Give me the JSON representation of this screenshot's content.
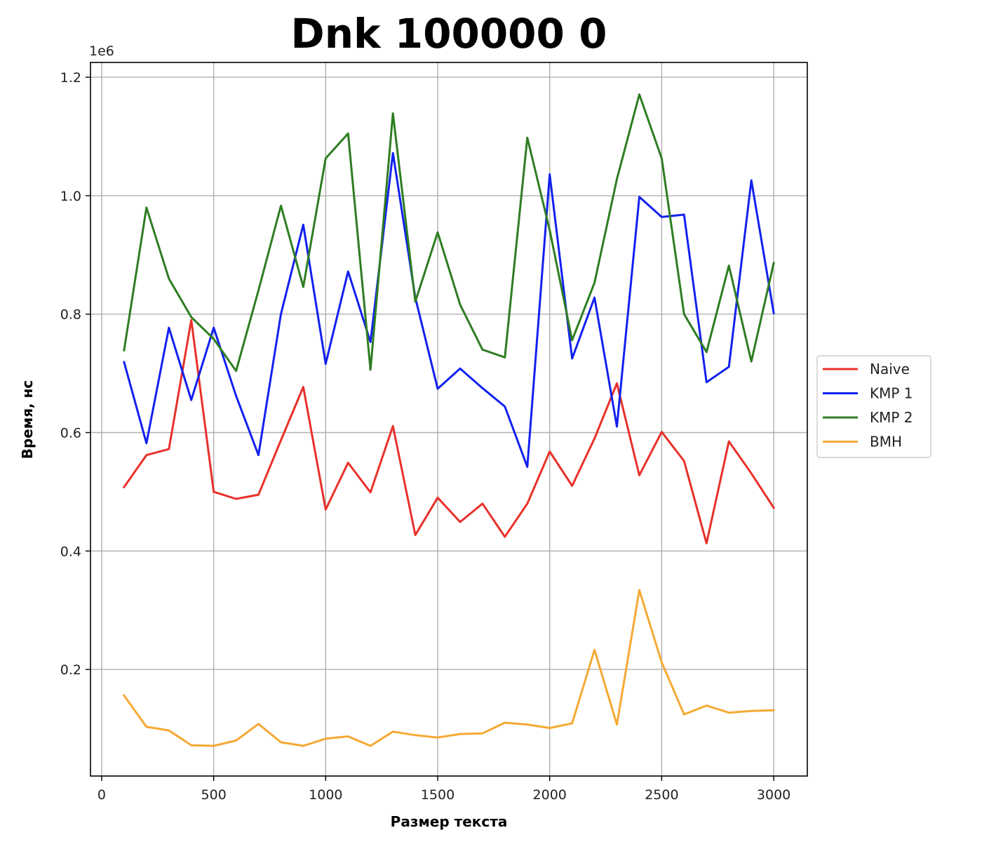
{
  "chart_data": {
    "type": "line",
    "title": "Dnk 100000 0",
    "xlabel": "Размер текста",
    "ylabel": "Время, нс",
    "y_offset_label": "1e6",
    "xlim": [
      -50,
      3150
    ],
    "ylim": [
      0.02,
      1.225
    ],
    "x_ticks": [
      0,
      500,
      1000,
      1500,
      2000,
      2500,
      3000
    ],
    "x_tick_labels": [
      "0",
      "500",
      "1000",
      "1500",
      "2000",
      "2500",
      "3000"
    ],
    "y_ticks": [
      0.2,
      0.4,
      0.6,
      0.8,
      1.0,
      1.2
    ],
    "y_tick_labels": [
      "0.2",
      "0.4",
      "0.6",
      "0.8",
      "1.0",
      "1.2"
    ],
    "grid": true,
    "legend_position": "right-outside",
    "x": [
      100,
      200,
      300,
      400,
      500,
      600,
      700,
      800,
      900,
      1000,
      1100,
      1200,
      1300,
      1400,
      1500,
      1600,
      1700,
      1800,
      1900,
      2000,
      2100,
      2200,
      2300,
      2400,
      2500,
      2600,
      2700,
      2800,
      2900,
      3000
    ],
    "series": [
      {
        "name": "Naive",
        "color": "#e8312a",
        "values": [
          0.508,
          0.562,
          0.572,
          0.79,
          0.5,
          0.488,
          0.495,
          0.587,
          0.677,
          0.47,
          0.549,
          0.499,
          0.611,
          0.427,
          0.49,
          0.449,
          0.48,
          0.424,
          0.48,
          0.568,
          0.51,
          0.59,
          0.683,
          0.528,
          0.601,
          0.552,
          0.413,
          0.585,
          0.531,
          0.473
        ]
      },
      {
        "name": "KMP 1",
        "color": "#1221f0",
        "values": [
          0.719,
          0.582,
          0.777,
          0.655,
          0.777,
          0.662,
          0.562,
          0.8,
          0.951,
          0.716,
          0.872,
          0.753,
          1.072,
          0.828,
          0.674,
          0.708,
          0.675,
          0.644,
          0.542,
          1.036,
          0.725,
          0.828,
          0.61,
          0.998,
          0.964,
          0.968,
          0.685,
          0.711,
          1.026,
          0.802
        ]
      },
      {
        "name": "KMP 2",
        "color": "#2e7d22",
        "values": [
          0.739,
          0.98,
          0.86,
          0.795,
          0.758,
          0.704,
          0.84,
          0.983,
          0.846,
          1.063,
          1.105,
          0.706,
          1.139,
          0.821,
          0.938,
          0.816,
          0.74,
          0.727,
          1.098,
          0.942,
          0.756,
          0.853,
          1.028,
          1.171,
          1.063,
          0.8,
          0.736,
          0.882,
          0.72,
          0.886
        ]
      },
      {
        "name": "BMH",
        "color": "#f5a934",
        "values": [
          0.156,
          0.103,
          0.097,
          0.072,
          0.071,
          0.08,
          0.108,
          0.077,
          0.071,
          0.083,
          0.087,
          0.071,
          0.095,
          0.089,
          0.085,
          0.091,
          0.092,
          0.11,
          0.107,
          0.101,
          0.109,
          0.233,
          0.107,
          0.334,
          0.212,
          0.124,
          0.139,
          0.127,
          0.13,
          0.131
        ]
      }
    ]
  }
}
